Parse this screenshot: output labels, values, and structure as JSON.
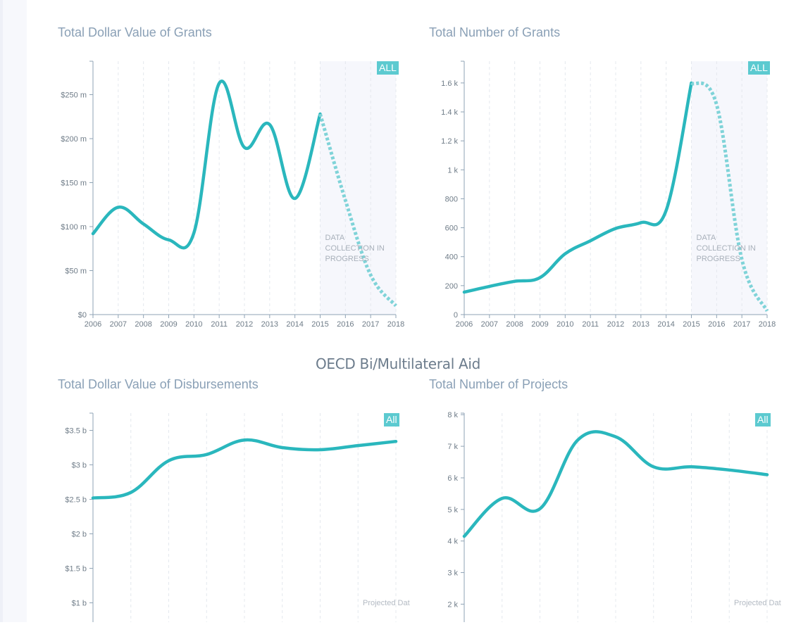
{
  "section_title": "OECD Bi/Multilateral Aid",
  "colors": {
    "line": "#2ab7bd",
    "projected": "#7fd3d8",
    "badge": "#5ccad0",
    "shade": "#f6f7fc",
    "axis": "#8fa3b5",
    "title": "#8aa0b6",
    "tick": "#6f7c88"
  },
  "chart_data": [
    {
      "id": "grants-value",
      "type": "line",
      "title": "Total Dollar Value of Grants",
      "badge": "ALL",
      "annotation": [
        "DATA",
        "COLLECTION IN",
        "PROGRESS"
      ],
      "x": [
        2006,
        2007,
        2008,
        2009,
        2010,
        2011,
        2012,
        2013,
        2014,
        2015,
        2016,
        2017,
        2018
      ],
      "series": [
        {
          "values": [
            92,
            122,
            103,
            85,
            93,
            263,
            190,
            216,
            132,
            228,
            null,
            null,
            null
          ]
        },
        {
          "projected": true,
          "values": [
            null,
            null,
            null,
            null,
            null,
            null,
            null,
            null,
            null,
            228,
            130,
            45,
            10
          ]
        }
      ],
      "xlim": [
        2006,
        2018
      ],
      "ylim": [
        0,
        288
      ],
      "yticks": [
        0,
        50,
        100,
        150,
        200,
        250
      ],
      "ytick_labels": [
        "$0",
        "$50 m",
        "$100 m",
        "$150 m",
        "$200 m",
        "$250 m"
      ],
      "xtick_labels": [
        "2006",
        "2007",
        "2008",
        "2009",
        "2010",
        "2011",
        "2012",
        "2013",
        "2014",
        "2015",
        "2016",
        "2017",
        "2018"
      ],
      "shade_from": 2015,
      "grid": "vertical-dashed"
    },
    {
      "id": "grants-count",
      "type": "line",
      "title": "Total Number of Grants",
      "badge": "ALL",
      "annotation": [
        "DATA",
        "COLLECTION IN",
        "PROGRESS"
      ],
      "x": [
        2006,
        2007,
        2008,
        2009,
        2010,
        2011,
        2012,
        2013,
        2014,
        2015,
        2016,
        2017,
        2018
      ],
      "series": [
        {
          "values": [
            155,
            195,
            230,
            255,
            420,
            510,
            595,
            635,
            720,
            1600,
            null,
            null,
            null
          ]
        },
        {
          "projected": true,
          "values": [
            null,
            null,
            null,
            null,
            null,
            null,
            null,
            null,
            null,
            1600,
            1450,
            380,
            25
          ]
        }
      ],
      "xlim": [
        2006,
        2018
      ],
      "ylim": [
        0,
        1750
      ],
      "yticks": [
        0,
        200,
        400,
        600,
        800,
        1000,
        1200,
        1400,
        1600
      ],
      "ytick_labels": [
        "0",
        "200",
        "400",
        "600",
        "800",
        "1 k",
        "1.2 k",
        "1.4 k",
        "1.6 k"
      ],
      "xtick_labels": [
        "2006",
        "2007",
        "2008",
        "2009",
        "2010",
        "2011",
        "2012",
        "2013",
        "2014",
        "2015",
        "2016",
        "2017",
        "2018"
      ],
      "shade_from": 2015,
      "grid": "vertical-dashed"
    },
    {
      "id": "disbursements-value",
      "type": "line",
      "title": "Total Dollar Value of Disbursements",
      "badge": "All",
      "note": "Projected Dat",
      "x": [
        0,
        1,
        2,
        3,
        4,
        5,
        6,
        7,
        8
      ],
      "series": [
        {
          "values": [
            2.52,
            2.6,
            3.06,
            3.15,
            3.36,
            3.25,
            3.22,
            3.28,
            3.34
          ]
        }
      ],
      "xlim": [
        0,
        8
      ],
      "ylim": [
        0.72,
        3.75
      ],
      "yticks": [
        1,
        1.5,
        2,
        2.5,
        3,
        3.5
      ],
      "ytick_labels": [
        "$1 b",
        "$1.5 b",
        "$2 b",
        "$2.5 b",
        "$3 b",
        "$3.5 b"
      ],
      "grid": "vertical-dashed"
    },
    {
      "id": "projects-count",
      "type": "line",
      "title": "Total Number of Projects",
      "badge": "All",
      "note": "Projected Dat",
      "x": [
        0,
        1,
        2,
        3,
        4,
        5,
        6,
        7,
        8
      ],
      "series": [
        {
          "values": [
            4.15,
            5.35,
            5.02,
            7.2,
            7.3,
            6.35,
            6.35,
            6.25,
            6.1
          ]
        }
      ],
      "xlim": [
        0,
        8
      ],
      "ylim": [
        1.43,
        8.05
      ],
      "yticks": [
        2,
        3,
        4,
        5,
        6,
        7,
        8
      ],
      "ytick_labels": [
        "2 k",
        "3 k",
        "4 k",
        "5 k",
        "6 k",
        "7 k",
        "8 k"
      ],
      "grid": "vertical-dashed"
    }
  ]
}
